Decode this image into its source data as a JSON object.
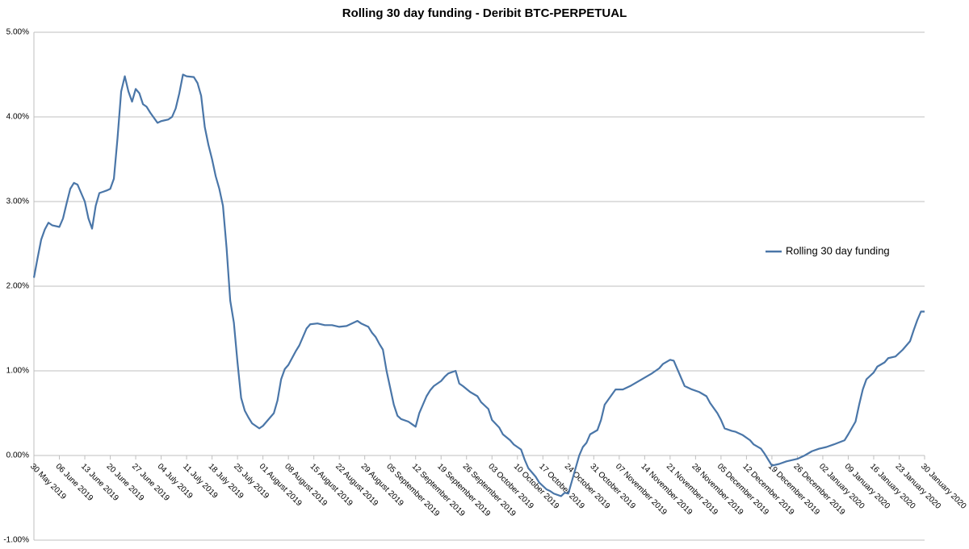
{
  "chart_data": {
    "type": "line",
    "title": "Rolling 30 day funding - Deribit BTC-PERPETUAL",
    "x": [
      "2019-05-30",
      "2019-05-31",
      "2019-06-01",
      "2019-06-02",
      "2019-06-03",
      "2019-06-04",
      "2019-06-06",
      "2019-06-07",
      "2019-06-08",
      "2019-06-09",
      "2019-06-10",
      "2019-06-11",
      "2019-06-12",
      "2019-06-13",
      "2019-06-14",
      "2019-06-15",
      "2019-06-16",
      "2019-06-17",
      "2019-06-19",
      "2019-06-20",
      "2019-06-21",
      "2019-06-22",
      "2019-06-23",
      "2019-06-24",
      "2019-06-25",
      "2019-06-26",
      "2019-06-27",
      "2019-06-28",
      "2019-06-29",
      "2019-06-30",
      "2019-07-01",
      "2019-07-03",
      "2019-07-04",
      "2019-07-06",
      "2019-07-07",
      "2019-07-08",
      "2019-07-09",
      "2019-07-10",
      "2019-07-11",
      "2019-07-13",
      "2019-07-14",
      "2019-07-15",
      "2019-07-16",
      "2019-07-17",
      "2019-07-18",
      "2019-07-19",
      "2019-07-20",
      "2019-07-21",
      "2019-07-22",
      "2019-07-23",
      "2019-07-24",
      "2019-07-25",
      "2019-07-26",
      "2019-07-27",
      "2019-07-28",
      "2019-07-29",
      "2019-07-31",
      "2019-08-01",
      "2019-08-02",
      "2019-08-04",
      "2019-08-05",
      "2019-08-06",
      "2019-08-07",
      "2019-08-08",
      "2019-08-09",
      "2019-08-10",
      "2019-08-11",
      "2019-08-12",
      "2019-08-13",
      "2019-08-14",
      "2019-08-16",
      "2019-08-18",
      "2019-08-20",
      "2019-08-22",
      "2019-08-24",
      "2019-08-26",
      "2019-08-27",
      "2019-08-28",
      "2019-08-30",
      "2019-08-31",
      "2019-09-01",
      "2019-09-02",
      "2019-09-03",
      "2019-09-04",
      "2019-09-05",
      "2019-09-06",
      "2019-09-07",
      "2019-09-08",
      "2019-09-10",
      "2019-09-12",
      "2019-09-13",
      "2019-09-14",
      "2019-09-15",
      "2019-09-16",
      "2019-09-17",
      "2019-09-19",
      "2019-09-20",
      "2019-09-21",
      "2019-09-23",
      "2019-09-24",
      "2019-09-25",
      "2019-09-27",
      "2019-09-29",
      "2019-09-30",
      "2019-10-02",
      "2019-10-03",
      "2019-10-05",
      "2019-10-06",
      "2019-10-08",
      "2019-10-09",
      "2019-10-11",
      "2019-10-12",
      "2019-10-13",
      "2019-10-15",
      "2019-10-16",
      "2019-10-18",
      "2019-10-19",
      "2019-10-20",
      "2019-10-22",
      "2019-10-23",
      "2019-10-24",
      "2019-10-25",
      "2019-10-26",
      "2019-10-27",
      "2019-10-28",
      "2019-10-29",
      "2019-10-30",
      "2019-11-01",
      "2019-11-02",
      "2019-11-03",
      "2019-11-05",
      "2019-11-06",
      "2019-11-08",
      "2019-11-10",
      "2019-11-12",
      "2019-11-14",
      "2019-11-16",
      "2019-11-18",
      "2019-11-19",
      "2019-11-21",
      "2019-11-22",
      "2019-11-23",
      "2019-11-24",
      "2019-11-25",
      "2019-11-27",
      "2019-11-29",
      "2019-12-01",
      "2019-12-02",
      "2019-12-04",
      "2019-12-05",
      "2019-12-06",
      "2019-12-08",
      "2019-12-09",
      "2019-12-11",
      "2019-12-13",
      "2019-12-14",
      "2019-12-16",
      "2019-12-17",
      "2019-12-18",
      "2019-12-19",
      "2019-12-21",
      "2019-12-23",
      "2019-12-26",
      "2019-12-28",
      "2019-12-30",
      "2020-01-01",
      "2020-01-03",
      "2020-01-05",
      "2020-01-08",
      "2020-01-09",
      "2020-01-11",
      "2020-01-12",
      "2020-01-13",
      "2020-01-14",
      "2020-01-16",
      "2020-01-17",
      "2020-01-19",
      "2020-01-20",
      "2020-01-22",
      "2020-01-24",
      "2020-01-26",
      "2020-01-27",
      "2020-01-28",
      "2020-01-29",
      "2020-01-30"
    ],
    "series": [
      {
        "name": "Rolling 30 day funding",
        "color": "#4a76a8",
        "values": [
          2.1,
          2.33,
          2.55,
          2.67,
          2.75,
          2.72,
          2.7,
          2.8,
          2.98,
          3.15,
          3.22,
          3.2,
          3.1,
          3.0,
          2.8,
          2.68,
          2.95,
          3.1,
          3.13,
          3.15,
          3.27,
          3.75,
          4.3,
          4.48,
          4.3,
          4.18,
          4.33,
          4.28,
          4.15,
          4.12,
          4.05,
          3.93,
          3.95,
          3.97,
          4.0,
          4.1,
          4.28,
          4.5,
          4.48,
          4.47,
          4.4,
          4.25,
          3.88,
          3.67,
          3.5,
          3.3,
          3.15,
          2.95,
          2.45,
          1.83,
          1.57,
          1.1,
          0.68,
          0.53,
          0.45,
          0.38,
          0.32,
          0.35,
          0.4,
          0.5,
          0.65,
          0.9,
          1.02,
          1.07,
          1.15,
          1.23,
          1.3,
          1.4,
          1.5,
          1.55,
          1.56,
          1.54,
          1.54,
          1.52,
          1.53,
          1.57,
          1.59,
          1.56,
          1.52,
          1.45,
          1.4,
          1.32,
          1.25,
          1.0,
          0.8,
          0.6,
          0.47,
          0.43,
          0.4,
          0.34,
          0.5,
          0.6,
          0.7,
          0.77,
          0.82,
          0.88,
          0.93,
          0.97,
          1.0,
          0.85,
          0.82,
          0.75,
          0.7,
          0.63,
          0.55,
          0.42,
          0.33,
          0.25,
          0.18,
          0.13,
          0.07,
          -0.05,
          -0.15,
          -0.25,
          -0.32,
          -0.4,
          -0.42,
          -0.45,
          -0.48,
          -0.44,
          -0.45,
          -0.3,
          -0.15,
          0.0,
          0.1,
          0.15,
          0.25,
          0.3,
          0.42,
          0.6,
          0.72,
          0.78,
          0.78,
          0.82,
          0.87,
          0.92,
          0.97,
          1.03,
          1.08,
          1.13,
          1.12,
          1.02,
          0.92,
          0.82,
          0.78,
          0.75,
          0.7,
          0.62,
          0.5,
          0.42,
          0.32,
          0.29,
          0.28,
          0.24,
          0.18,
          0.13,
          0.08,
          0.02,
          -0.05,
          -0.12,
          -0.1,
          -0.07,
          -0.04,
          0.0,
          0.05,
          0.08,
          0.1,
          0.13,
          0.18,
          0.25,
          0.4,
          0.6,
          0.78,
          0.9,
          0.98,
          1.05,
          1.1,
          1.15,
          1.17,
          1.25,
          1.35,
          1.48,
          1.6,
          1.7,
          1.7
        ]
      }
    ],
    "xlim": [
      "2019-05-30",
      "2020-01-30"
    ],
    "xticks": [
      {
        "value": "2019-05-30",
        "label": "30 May 2019"
      },
      {
        "value": "2019-06-06",
        "label": "06 June 2019"
      },
      {
        "value": "2019-06-13",
        "label": "13 June 2019"
      },
      {
        "value": "2019-06-20",
        "label": "20 June 2019"
      },
      {
        "value": "2019-06-27",
        "label": "27 June 2019"
      },
      {
        "value": "2019-07-04",
        "label": "04 July 2019"
      },
      {
        "value": "2019-07-11",
        "label": "11 July 2019"
      },
      {
        "value": "2019-07-18",
        "label": "18 July 2019"
      },
      {
        "value": "2019-07-25",
        "label": "25 July 2019"
      },
      {
        "value": "2019-08-01",
        "label": "01 August 2019"
      },
      {
        "value": "2019-08-08",
        "label": "08 August 2019"
      },
      {
        "value": "2019-08-15",
        "label": "15 August 2019"
      },
      {
        "value": "2019-08-22",
        "label": "22 August 2019"
      },
      {
        "value": "2019-08-29",
        "label": "29 August 2019"
      },
      {
        "value": "2019-09-05",
        "label": "05 September 2019"
      },
      {
        "value": "2019-09-12",
        "label": "12 September 2019"
      },
      {
        "value": "2019-09-19",
        "label": "19 September 2019"
      },
      {
        "value": "2019-09-26",
        "label": "26 September 2019"
      },
      {
        "value": "2019-10-03",
        "label": "03 October 2019"
      },
      {
        "value": "2019-10-10",
        "label": "10 October 2019"
      },
      {
        "value": "2019-10-17",
        "label": "17 October 2019"
      },
      {
        "value": "2019-10-24",
        "label": "24 October 2019"
      },
      {
        "value": "2019-10-31",
        "label": "31 October 2019"
      },
      {
        "value": "2019-11-07",
        "label": "07 November 2019"
      },
      {
        "value": "2019-11-14",
        "label": "14 November 2019"
      },
      {
        "value": "2019-11-21",
        "label": "21 November 2019"
      },
      {
        "value": "2019-11-28",
        "label": "28 November 2019"
      },
      {
        "value": "2019-12-05",
        "label": "05 December 2019"
      },
      {
        "value": "2019-12-12",
        "label": "12 December 2019"
      },
      {
        "value": "2019-12-19",
        "label": "19 December 2019"
      },
      {
        "value": "2019-12-26",
        "label": "26 December 2019"
      },
      {
        "value": "2020-01-02",
        "label": "02 January 2020"
      },
      {
        "value": "2020-01-09",
        "label": "09 January 2020"
      },
      {
        "value": "2020-01-16",
        "label": "16 January 2020"
      },
      {
        "value": "2020-01-23",
        "label": "23 January 2020"
      },
      {
        "value": "2020-01-30",
        "label": "30 January 2020"
      }
    ],
    "ylim": [
      -1,
      5
    ],
    "yticks": [
      {
        "value": -1,
        "label": "-1.00%"
      },
      {
        "value": 0,
        "label": "0.00%"
      },
      {
        "value": 1,
        "label": "1.00%"
      },
      {
        "value": 2,
        "label": "2.00%"
      },
      {
        "value": 3,
        "label": "3.00%"
      },
      {
        "value": 4,
        "label": "4.00%"
      },
      {
        "value": 5,
        "label": "5.00%"
      }
    ],
    "grid": true,
    "legend": "right"
  }
}
